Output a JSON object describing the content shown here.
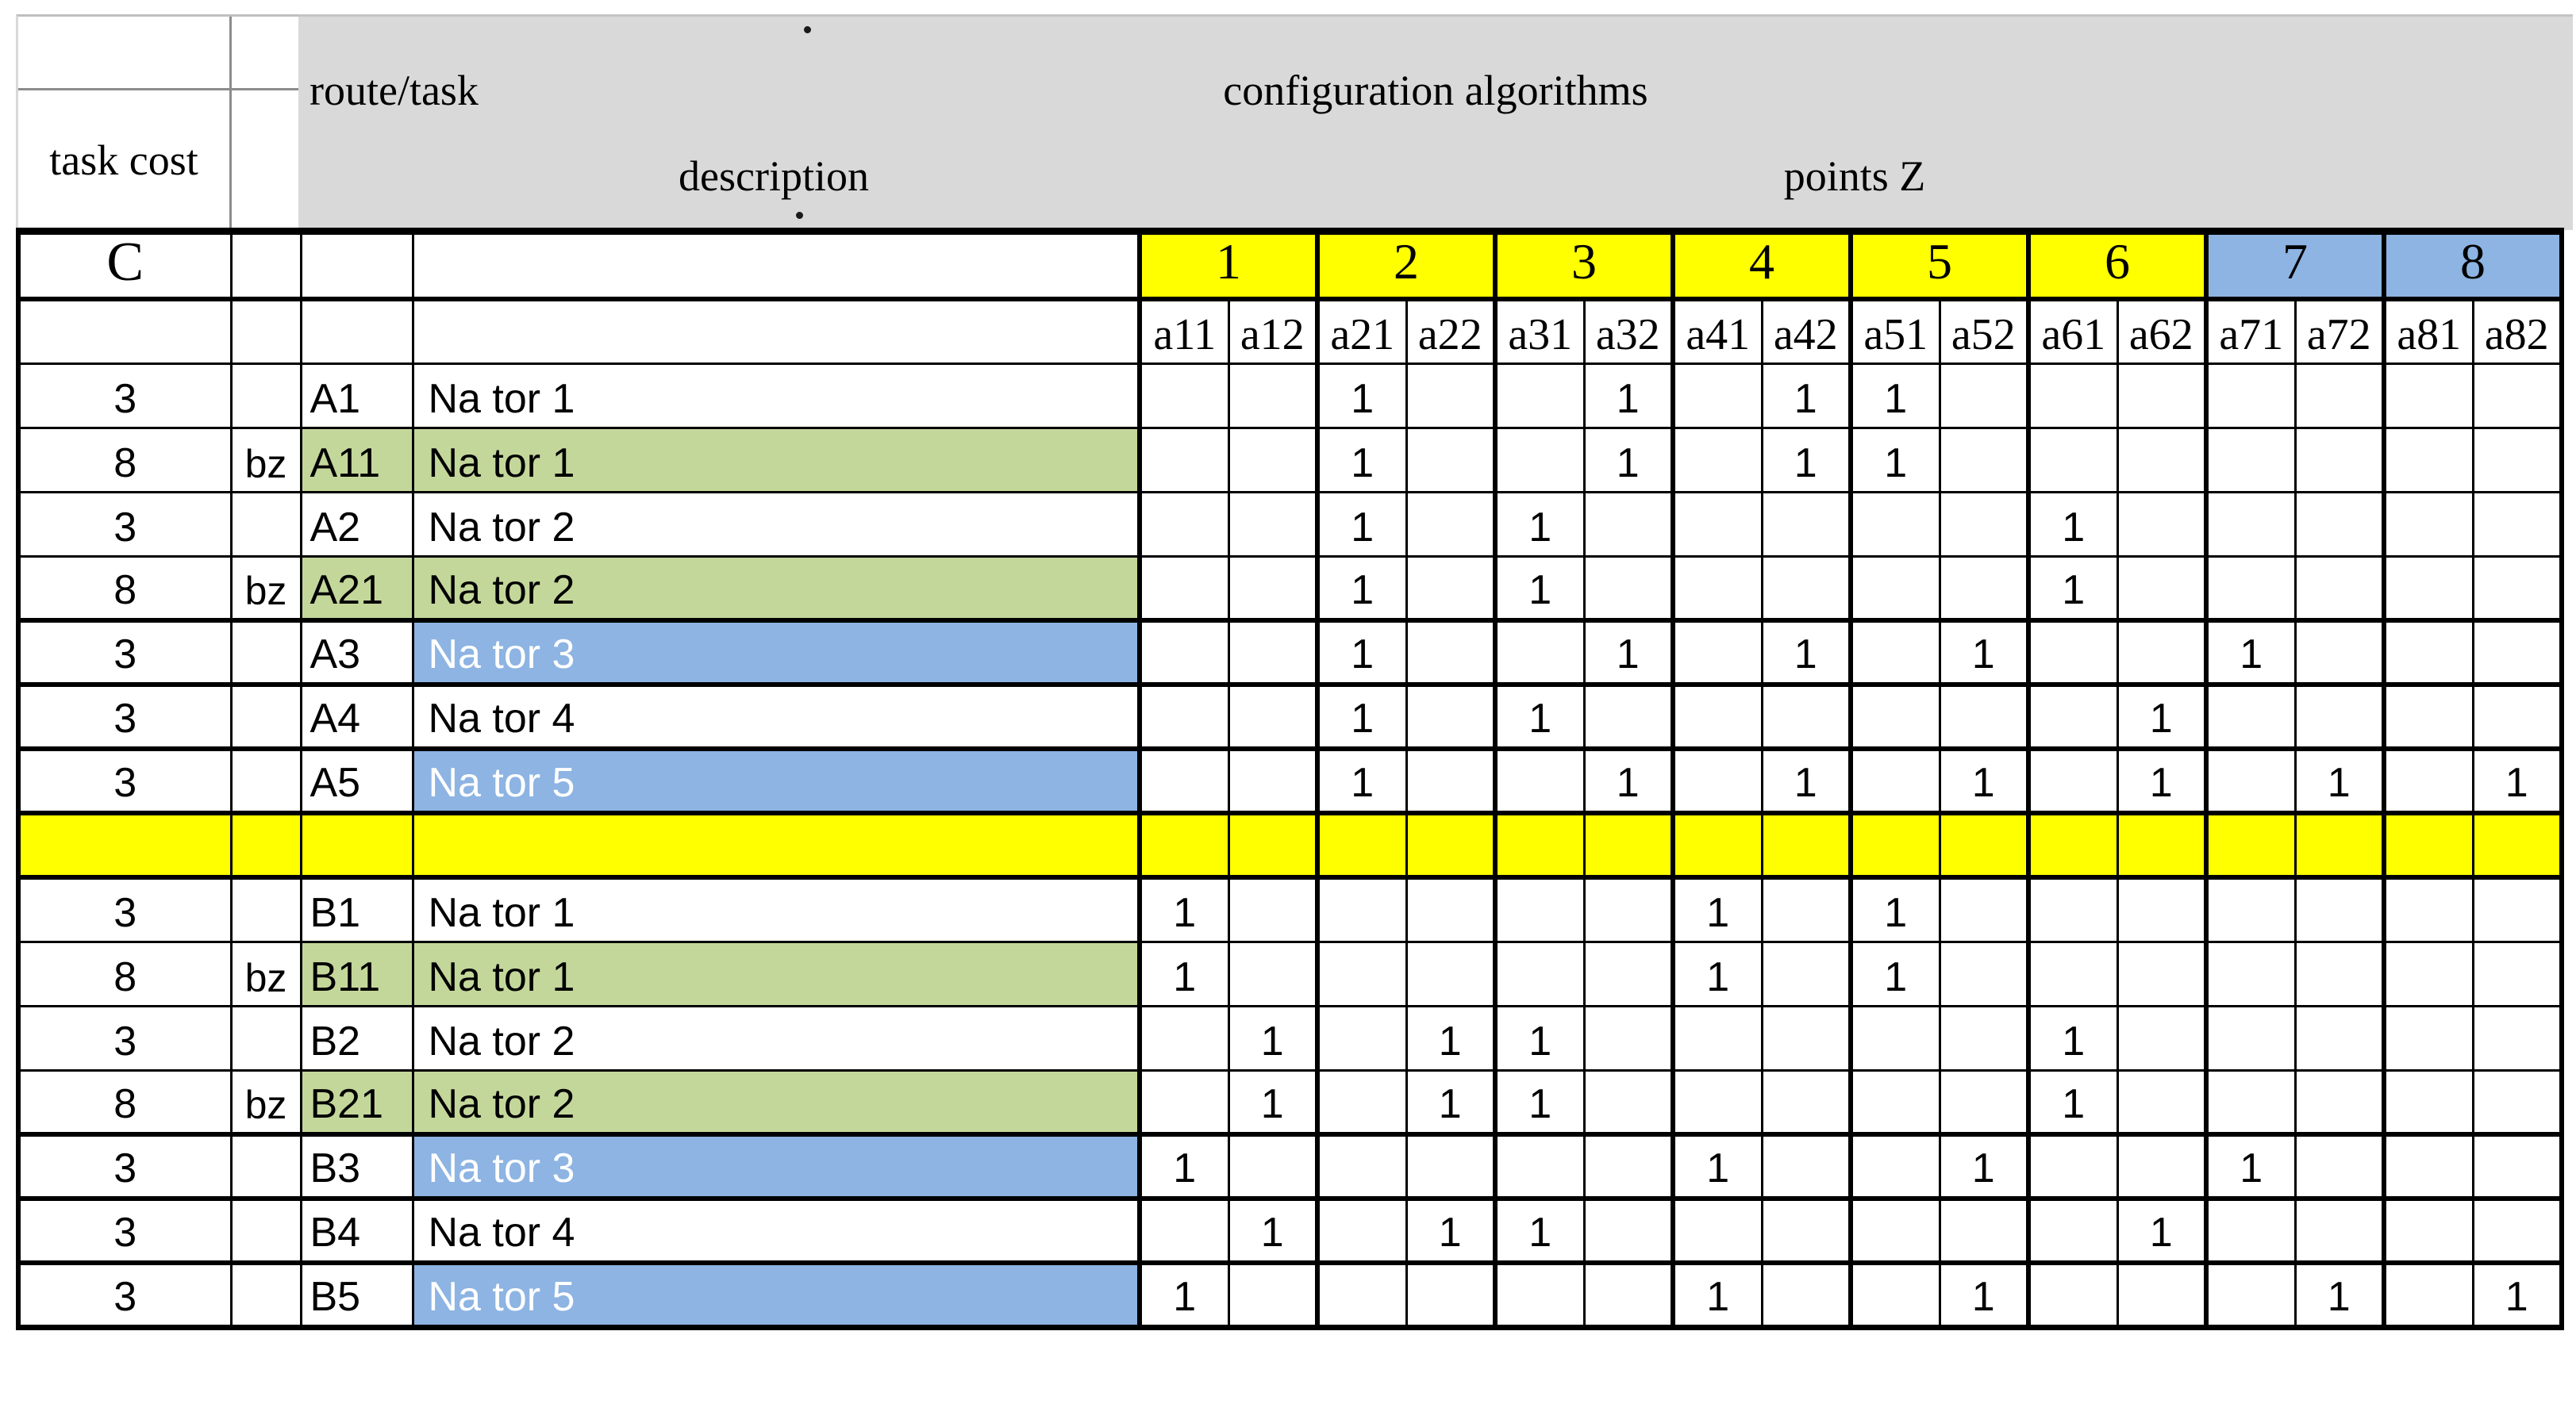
{
  "header": {
    "task_cost": "task cost",
    "route_task": "route/task",
    "description": "description",
    "configuration_algorithms": "configuration algorithms",
    "points_z": "points Z"
  },
  "colors": {
    "header_gray": "#d9d9d9",
    "yellow": "#ffff00",
    "blue": "#8db4e2",
    "green": "#c4d79b",
    "border": "#000000",
    "blue_cell_text": "#ffffff"
  },
  "one_symbol": "1",
  "c_row": {
    "label": "C",
    "groups": [
      {
        "label": "1",
        "bg": "yellow"
      },
      {
        "label": "2",
        "bg": "yellow"
      },
      {
        "label": "3",
        "bg": "yellow"
      },
      {
        "label": "4",
        "bg": "yellow"
      },
      {
        "label": "5",
        "bg": "yellow"
      },
      {
        "label": "6",
        "bg": "yellow"
      },
      {
        "label": "7",
        "bg": "blue"
      },
      {
        "label": "8",
        "bg": "blue"
      }
    ]
  },
  "algorithm_columns": [
    "a11",
    "a12",
    "a21",
    "a22",
    "a31",
    "a32",
    "a41",
    "a42",
    "a51",
    "a52",
    "a61",
    "a62",
    "a71",
    "a72",
    "a81",
    "a82"
  ],
  "rows": [
    {
      "type": "task",
      "cost": "3",
      "bz": "",
      "code": "A1",
      "description": "Na tor 1",
      "code_bg": "white",
      "desc_bg": "white",
      "ones": [
        "a21",
        "a32",
        "a42",
        "a51"
      ],
      "sep": "thin"
    },
    {
      "type": "task",
      "cost": "8",
      "bz": "bz",
      "code": "A11",
      "description": "Na tor 1",
      "code_bg": "green",
      "desc_bg": "green",
      "ones": [
        "a21",
        "a32",
        "a42",
        "a51"
      ],
      "sep": "thin"
    },
    {
      "type": "task",
      "cost": "3",
      "bz": "",
      "code": "A2",
      "description": "Na tor 2",
      "code_bg": "white",
      "desc_bg": "white",
      "ones": [
        "a21",
        "a31",
        "a61"
      ],
      "sep": "thin"
    },
    {
      "type": "task",
      "cost": "8",
      "bz": "bz",
      "code": "A21",
      "description": "Na tor 2",
      "code_bg": "green",
      "desc_bg": "green",
      "ones": [
        "a21",
        "a31",
        "a61"
      ],
      "sep": "thick"
    },
    {
      "type": "task",
      "cost": "3",
      "bz": "",
      "code": "A3",
      "description": "Na tor 3",
      "code_bg": "white",
      "desc_bg": "blue",
      "ones": [
        "a21",
        "a32",
        "a42",
        "a52",
        "a71"
      ],
      "sep": "thick"
    },
    {
      "type": "task",
      "cost": "3",
      "bz": "",
      "code": "A4",
      "description": "Na tor 4",
      "code_bg": "white",
      "desc_bg": "white",
      "ones": [
        "a21",
        "a31",
        "a62"
      ],
      "sep": "thick"
    },
    {
      "type": "task",
      "cost": "3",
      "bz": "",
      "code": "A5",
      "description": "Na tor 5",
      "code_bg": "white",
      "desc_bg": "blue",
      "ones": [
        "a21",
        "a32",
        "a42",
        "a52",
        "a62",
        "a72",
        "a82"
      ],
      "sep": "thick"
    },
    {
      "type": "separator",
      "sep": "thick"
    },
    {
      "type": "task",
      "cost": "3",
      "bz": "",
      "code": "B1",
      "description": "Na tor 1",
      "code_bg": "white",
      "desc_bg": "white",
      "ones": [
        "a11",
        "a41",
        "a51"
      ],
      "sep": "thin"
    },
    {
      "type": "task",
      "cost": "8",
      "bz": "bz",
      "code": "B11",
      "description": "Na tor 1",
      "code_bg": "green",
      "desc_bg": "green",
      "ones": [
        "a11",
        "a41",
        "a51"
      ],
      "sep": "thin"
    },
    {
      "type": "task",
      "cost": "3",
      "bz": "",
      "code": "B2",
      "description": "Na tor 2",
      "code_bg": "white",
      "desc_bg": "white",
      "ones": [
        "a12",
        "a22",
        "a31",
        "a61"
      ],
      "sep": "thin"
    },
    {
      "type": "task",
      "cost": "8",
      "bz": "bz",
      "code": "B21",
      "description": "Na tor 2",
      "code_bg": "green",
      "desc_bg": "green",
      "ones": [
        "a12",
        "a22",
        "a31",
        "a61"
      ],
      "sep": "thick"
    },
    {
      "type": "task",
      "cost": "3",
      "bz": "",
      "code": "B3",
      "description": "Na tor 3",
      "code_bg": "white",
      "desc_bg": "blue",
      "ones": [
        "a11",
        "a41",
        "a52",
        "a71"
      ],
      "sep": "thick"
    },
    {
      "type": "task",
      "cost": "3",
      "bz": "",
      "code": "B4",
      "description": "Na tor 4",
      "code_bg": "white",
      "desc_bg": "white",
      "ones": [
        "a12",
        "a22",
        "a31",
        "a62"
      ],
      "sep": "thick"
    },
    {
      "type": "task",
      "cost": "3",
      "bz": "",
      "code": "B5",
      "description": "Na tor 5",
      "code_bg": "white",
      "desc_bg": "blue",
      "ones": [
        "a11",
        "a41",
        "a52",
        "a72",
        "a82"
      ],
      "sep": "none"
    }
  ]
}
